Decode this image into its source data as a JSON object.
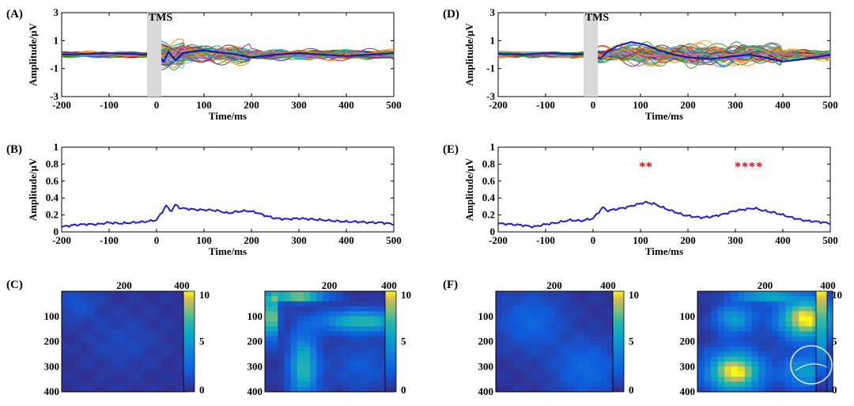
{
  "figure": {
    "panel_labels": [
      "(A)",
      "(B)",
      "(C)",
      "(D)",
      "(E)",
      "(F)"
    ],
    "stim_label": "TMS",
    "xlabel": "Time/ms",
    "ylabel": "Amplitude/μV"
  },
  "chart_data": [
    {
      "id": "A",
      "type": "line",
      "xlabel": "Time/ms",
      "ylabel": "Amplitude/μV",
      "xlim": [
        -200,
        500
      ],
      "ylim": [
        -3,
        3
      ],
      "xticks": [
        -200,
        -100,
        0,
        100,
        200,
        300,
        400,
        500
      ],
      "yticks": [
        -3,
        -1,
        1,
        3
      ],
      "annotation": "TMS",
      "stim_window": [
        -20,
        10
      ],
      "series_count": 60,
      "mean_series": {
        "x": [
          -200,
          -150,
          -100,
          -50,
          -20,
          0,
          15,
          25,
          40,
          55,
          70,
          100,
          130,
          160,
          200,
          250,
          300,
          350,
          400,
          450,
          500
        ],
        "y": [
          0.0,
          0.05,
          0.1,
          0.05,
          0.0,
          0.05,
          -0.5,
          0.2,
          -0.4,
          0.1,
          0.2,
          0.3,
          0.15,
          0.05,
          -0.2,
          0.0,
          0.1,
          0.0,
          -0.1,
          0.0,
          0.1
        ]
      }
    },
    {
      "id": "D",
      "type": "line",
      "xlabel": "Time/ms",
      "ylabel": "Amplitude/μV",
      "xlim": [
        -200,
        500
      ],
      "ylim": [
        -3,
        3
      ],
      "xticks": [
        -200,
        -100,
        0,
        100,
        200,
        300,
        400,
        500
      ],
      "yticks": [
        -3,
        -1,
        1,
        3
      ],
      "annotation": "TMS",
      "stim_window": [
        -20,
        10
      ],
      "series_count": 60,
      "mean_series": {
        "x": [
          -200,
          -150,
          -100,
          -50,
          0,
          15,
          30,
          50,
          80,
          110,
          140,
          170,
          200,
          250,
          300,
          330,
          360,
          400,
          450,
          500
        ],
        "y": [
          0.05,
          0.0,
          0.1,
          0.05,
          0.0,
          -0.3,
          0.2,
          0.6,
          0.9,
          0.7,
          0.3,
          0.0,
          -0.2,
          -0.3,
          -0.1,
          0.0,
          -0.2,
          -0.5,
          -0.3,
          0.0
        ]
      }
    },
    {
      "id": "B",
      "type": "line",
      "xlabel": "Time/ms",
      "ylabel": "Amplitude/μV",
      "xlim": [
        -200,
        500
      ],
      "ylim": [
        0,
        1
      ],
      "xticks": [
        -200,
        -100,
        0,
        100,
        200,
        300,
        400,
        500
      ],
      "yticks": [
        0,
        0.2,
        0.4,
        0.6,
        0.8,
        1
      ],
      "series": [
        {
          "x": [
            -200,
            -175,
            -150,
            -125,
            -100,
            -75,
            -50,
            -25,
            0,
            10,
            20,
            30,
            40,
            50,
            70,
            90,
            110,
            130,
            150,
            170,
            190,
            210,
            230,
            250,
            275,
            300,
            325,
            350,
            375,
            400,
            425,
            450,
            475,
            500
          ],
          "y": [
            0.06,
            0.08,
            0.09,
            0.09,
            0.11,
            0.1,
            0.11,
            0.12,
            0.14,
            0.22,
            0.31,
            0.24,
            0.32,
            0.28,
            0.27,
            0.26,
            0.26,
            0.25,
            0.22,
            0.24,
            0.25,
            0.23,
            0.19,
            0.16,
            0.15,
            0.16,
            0.15,
            0.14,
            0.13,
            0.12,
            0.12,
            0.11,
            0.11,
            0.09
          ]
        }
      ]
    },
    {
      "id": "E",
      "type": "line",
      "xlabel": "Time/ms",
      "ylabel": "Amplitude/μV",
      "xlim": [
        -200,
        500
      ],
      "ylim": [
        0,
        1
      ],
      "xticks": [
        -200,
        -100,
        0,
        100,
        200,
        300,
        400,
        500
      ],
      "yticks": [
        0,
        0.2,
        0.4,
        0.6,
        0.8,
        1
      ],
      "significance": [
        {
          "x": [
            104,
            118
          ],
          "y": 0.8,
          "marks": "**"
        },
        {
          "x": [
            305,
            350
          ],
          "y": 0.8,
          "marks": "****"
        }
      ],
      "series": [
        {
          "x": [
            -200,
            -175,
            -150,
            -125,
            -100,
            -75,
            -50,
            -25,
            0,
            10,
            20,
            30,
            50,
            70,
            90,
            110,
            130,
            150,
            170,
            190,
            210,
            230,
            250,
            275,
            300,
            325,
            340,
            360,
            380,
            400,
            425,
            450,
            475,
            500
          ],
          "y": [
            0.1,
            0.09,
            0.08,
            0.06,
            0.09,
            0.11,
            0.14,
            0.13,
            0.16,
            0.22,
            0.29,
            0.25,
            0.27,
            0.29,
            0.32,
            0.35,
            0.33,
            0.28,
            0.24,
            0.2,
            0.18,
            0.17,
            0.18,
            0.21,
            0.25,
            0.27,
            0.28,
            0.25,
            0.23,
            0.2,
            0.16,
            0.13,
            0.12,
            0.1
          ]
        }
      ]
    },
    {
      "id": "C1",
      "type": "heatmap",
      "xticks": [
        200,
        400
      ],
      "yticks": [
        100,
        200,
        300,
        400
      ],
      "xlim": [
        0,
        400
      ],
      "ylim": [
        0,
        400
      ],
      "colorbar_ticks": [
        0,
        5,
        10
      ],
      "clim": [
        0,
        10
      ],
      "blobs": [
        {
          "cx": 50,
          "cy": 50,
          "sx": 50,
          "sy": 50,
          "amp": 1.2
        },
        {
          "cx": 200,
          "cy": 200,
          "sx": 80,
          "sy": 80,
          "amp": 0.8
        }
      ]
    },
    {
      "id": "C2",
      "type": "heatmap",
      "xticks": [
        200,
        400
      ],
      "yticks": [
        100,
        200,
        300,
        400
      ],
      "xlim": [
        0,
        400
      ],
      "ylim": [
        0,
        400
      ],
      "colorbar_ticks": [
        0,
        5,
        10
      ],
      "clim": [
        0,
        10
      ],
      "blobs": [
        {
          "cx": 100,
          "cy": 20,
          "sx": 60,
          "sy": 14,
          "amp": 9.5
        },
        {
          "cx": 20,
          "cy": 100,
          "sx": 14,
          "sy": 60,
          "amp": 9.5
        },
        {
          "cx": 300,
          "cy": 120,
          "sx": 90,
          "sy": 30,
          "amp": 6.5
        },
        {
          "cx": 120,
          "cy": 300,
          "sx": 30,
          "sy": 90,
          "amp": 6.5
        },
        {
          "cx": 300,
          "cy": 300,
          "sx": 70,
          "sy": 70,
          "amp": 1.5
        }
      ]
    },
    {
      "id": "F1",
      "type": "heatmap",
      "xticks": [
        200,
        400
      ],
      "yticks": [
        100,
        200,
        300,
        400
      ],
      "xlim": [
        0,
        400
      ],
      "ylim": [
        0,
        400
      ],
      "colorbar_ticks": [
        0,
        5,
        10
      ],
      "clim": [
        0,
        10
      ],
      "blobs": [
        {
          "cx": 120,
          "cy": 120,
          "sx": 80,
          "sy": 80,
          "amp": 2.0
        },
        {
          "cx": 310,
          "cy": 310,
          "sx": 80,
          "sy": 80,
          "amp": 2.2
        }
      ]
    },
    {
      "id": "F2",
      "type": "heatmap",
      "xticks": [
        200,
        400
      ],
      "yticks": [
        100,
        200,
        300,
        400
      ],
      "xlim": [
        0,
        400
      ],
      "ylim": [
        0,
        400
      ],
      "colorbar_ticks": [
        0,
        5,
        10
      ],
      "clim": [
        0,
        10
      ],
      "blobs": [
        {
          "cx": 320,
          "cy": 110,
          "sx": 55,
          "sy": 55,
          "amp": 10
        },
        {
          "cx": 110,
          "cy": 320,
          "sx": 55,
          "sy": 55,
          "amp": 10
        },
        {
          "cx": 110,
          "cy": 110,
          "sx": 40,
          "sy": 40,
          "amp": 5
        },
        {
          "cx": 320,
          "cy": 320,
          "sx": 45,
          "sy": 45,
          "amp": 5
        },
        {
          "cx": 200,
          "cy": 20,
          "sx": 60,
          "sy": 15,
          "amp": 6
        }
      ]
    }
  ]
}
